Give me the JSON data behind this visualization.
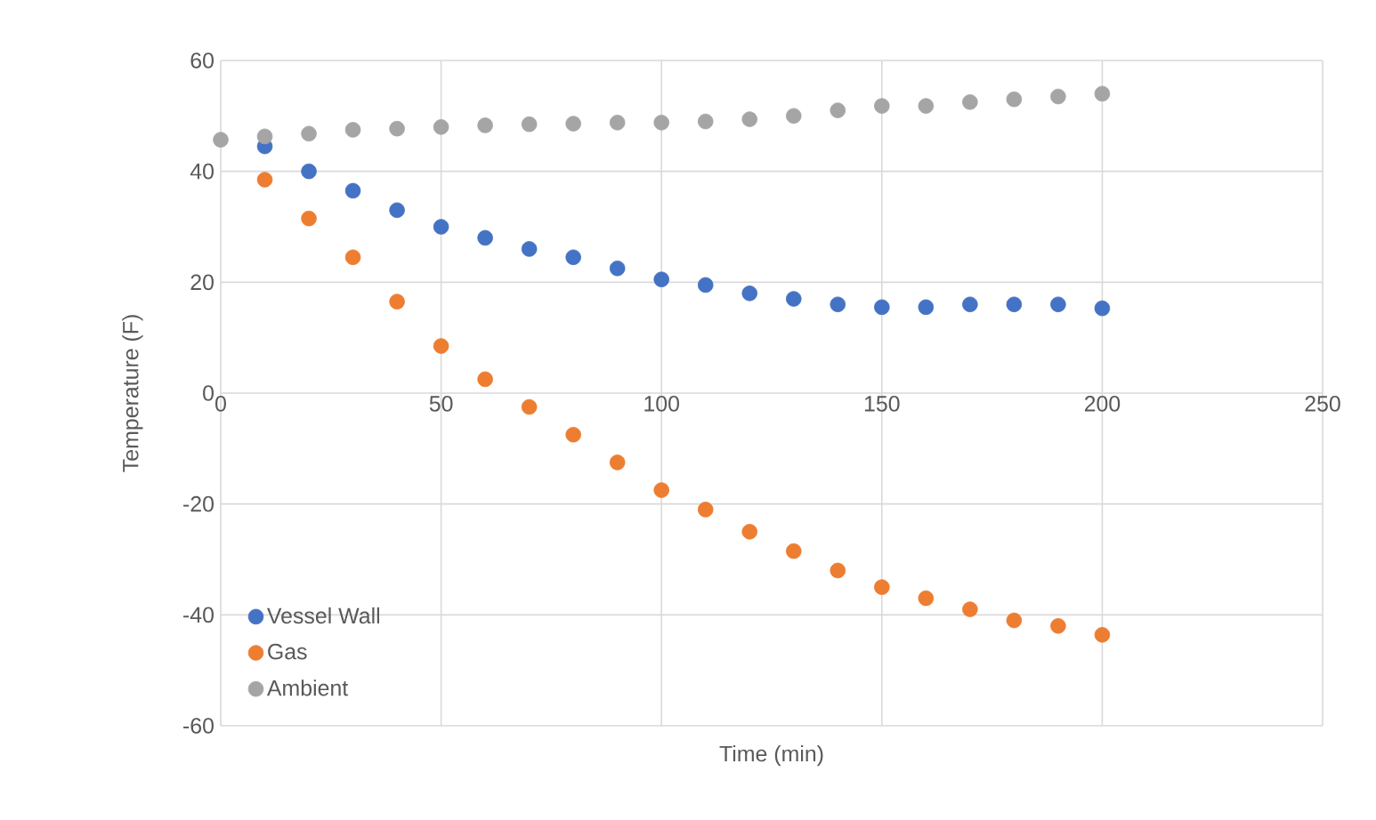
{
  "chart_data": {
    "type": "scatter",
    "xlabel": "Time (min)",
    "ylabel": "Temperature (F)",
    "x": [
      0,
      10,
      20,
      30,
      40,
      50,
      60,
      70,
      80,
      90,
      100,
      110,
      120,
      130,
      140,
      150,
      160,
      170,
      180,
      190,
      200
    ],
    "series": [
      {
        "name": "Vessel Wall",
        "color": "#4472c4",
        "values": [
          null,
          44.5,
          40,
          36.5,
          33,
          30,
          28,
          26,
          24.5,
          22.5,
          20.5,
          19.5,
          18,
          17,
          16,
          15.5,
          15.5,
          16,
          16,
          16,
          15.3
        ]
      },
      {
        "name": "Gas",
        "color": "#ed7d31",
        "values": [
          null,
          38.5,
          31.5,
          24.5,
          16.5,
          8.5,
          2.5,
          -2.5,
          -7.5,
          -12.5,
          -17.5,
          -21,
          -25,
          -28.5,
          -32,
          -35,
          -37,
          -39,
          -41,
          -42,
          -43.6
        ]
      },
      {
        "name": "Ambient",
        "color": "#a5a5a5",
        "values": [
          45.7,
          46.3,
          46.8,
          47.5,
          47.7,
          48,
          48.3,
          48.5,
          48.6,
          48.8,
          48.8,
          49,
          49.4,
          50,
          51,
          51.8,
          51.8,
          52.5,
          53,
          53.5,
          54
        ]
      }
    ],
    "xlim": [
      0,
      250
    ],
    "xticks": [
      0,
      50,
      100,
      150,
      200,
      250
    ],
    "ylim": [
      -60,
      60
    ],
    "yticks": [
      -60,
      -40,
      -20,
      0,
      20,
      40,
      60
    ],
    "grid": true,
    "legend": "bottom left",
    "marker": "circle"
  }
}
